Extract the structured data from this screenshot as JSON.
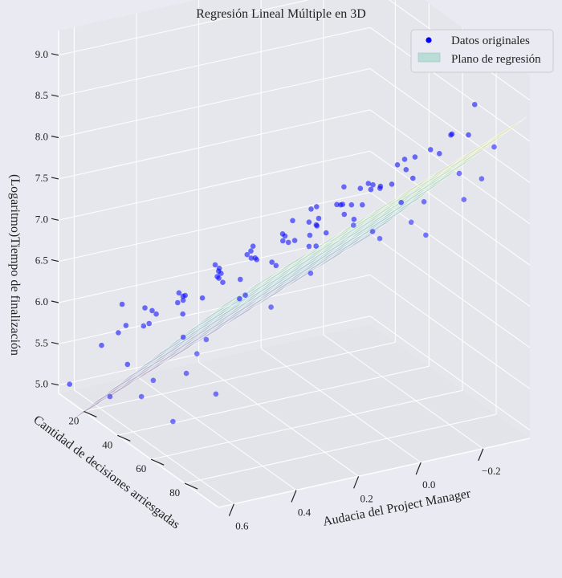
{
  "chart_data": {
    "type": "scatter",
    "title": "Regresión Lineal Múltiple en 3D",
    "xlabel": "Cantidad de decisiones arriesgadas",
    "ylabel": "Audacia del Project Manager",
    "zlabel": "(Logaritmo)Tiempo de finalización",
    "xlim": [
      5,
      100
    ],
    "ylim": [
      -0.35,
      0.65
    ],
    "zlim": [
      4.9,
      9.3
    ],
    "x_ticks": [
      "20",
      "40",
      "60",
      "80"
    ],
    "y_ticks": [
      "0.6",
      "0.4",
      "0.2",
      "0.0",
      "−0.2"
    ],
    "z_ticks": [
      "5.0",
      "5.5",
      "6.0",
      "6.5",
      "7.0",
      "7.5",
      "8.0",
      "8.5",
      "9.0"
    ],
    "legend": {
      "position": "top-right",
      "entries": [
        {
          "label": "Datos originales",
          "color": "#0000ff"
        },
        {
          "label": "Plano de regresión",
          "color": "#b9dcd6"
        }
      ]
    },
    "series": [
      {
        "name": "Datos originales",
        "color": "#0000ff",
        "points": [
          [
            6,
            0.62,
            5.0
          ],
          [
            8,
            0.45,
            5.6
          ],
          [
            10,
            0.4,
            5.8
          ],
          [
            12,
            0.55,
            5.5
          ],
          [
            14,
            0.3,
            5.7
          ],
          [
            15,
            0.5,
            6.0
          ],
          [
            16,
            0.2,
            6.1
          ],
          [
            18,
            0.42,
            5.9
          ],
          [
            20,
            0.1,
            6.3
          ],
          [
            21,
            0.35,
            6.1
          ],
          [
            22,
            0.55,
            5.8
          ],
          [
            24,
            0.25,
            6.4
          ],
          [
            25,
            0.0,
            6.5
          ],
          [
            26,
            0.45,
            6.0
          ],
          [
            28,
            0.15,
            6.6
          ],
          [
            29,
            0.38,
            6.2
          ],
          [
            30,
            -0.05,
            6.8
          ],
          [
            31,
            0.5,
            6.0
          ],
          [
            32,
            0.28,
            6.5
          ],
          [
            33,
            0.05,
            6.9
          ],
          [
            34,
            0.4,
            6.3
          ],
          [
            35,
            -0.1,
            7.0
          ],
          [
            36,
            0.2,
            6.7
          ],
          [
            37,
            0.55,
            6.1
          ],
          [
            38,
            0.0,
            7.1
          ],
          [
            39,
            0.32,
            6.6
          ],
          [
            40,
            0.12,
            6.9
          ],
          [
            41,
            -0.15,
            7.3
          ],
          [
            42,
            0.45,
            6.4
          ],
          [
            43,
            0.25,
            6.8
          ],
          [
            44,
            0.05,
            7.2
          ],
          [
            45,
            -0.05,
            7.4
          ],
          [
            46,
            0.35,
            6.7
          ],
          [
            47,
            0.15,
            7.0
          ],
          [
            48,
            0.5,
            6.5
          ],
          [
            49,
            -0.2,
            7.6
          ],
          [
            50,
            0.0,
            7.3
          ],
          [
            51,
            0.28,
            6.9
          ],
          [
            52,
            0.1,
            7.2
          ],
          [
            53,
            -0.1,
            7.5
          ],
          [
            54,
            0.4,
            6.8
          ],
          [
            55,
            0.2,
            7.1
          ],
          [
            56,
            0.02,
            7.4
          ],
          [
            57,
            -0.18,
            7.8
          ],
          [
            58,
            0.3,
            7.0
          ],
          [
            59,
            0.48,
            6.7
          ],
          [
            60,
            0.12,
            7.3
          ],
          [
            61,
            -0.05,
            7.6
          ],
          [
            62,
            0.22,
            7.2
          ],
          [
            63,
            0.38,
            6.9
          ],
          [
            64,
            0.0,
            7.7
          ],
          [
            65,
            -0.22,
            8.0
          ],
          [
            66,
            0.15,
            7.4
          ],
          [
            67,
            0.3,
            7.1
          ],
          [
            68,
            0.05,
            7.6
          ],
          [
            69,
            -0.12,
            7.9
          ],
          [
            70,
            0.42,
            6.8
          ],
          [
            71,
            0.2,
            7.4
          ],
          [
            72,
            -0.02,
            7.8
          ],
          [
            73,
            0.1,
            7.6
          ],
          [
            74,
            -0.2,
            8.1
          ],
          [
            75,
            0.33,
            7.2
          ],
          [
            76,
            0.0,
            7.9
          ],
          [
            77,
            0.18,
            7.5
          ],
          [
            78,
            -0.1,
            8.2
          ],
          [
            79,
            0.45,
            7.0
          ],
          [
            80,
            0.08,
            7.8
          ],
          [
            82,
            -0.25,
            8.4
          ],
          [
            84,
            0.25,
            7.5
          ],
          [
            86,
            -0.05,
            8.1
          ],
          [
            88,
            0.15,
            7.8
          ],
          [
            90,
            -0.15,
            8.6
          ],
          [
            92,
            0.05,
            8.2
          ],
          [
            95,
            -0.2,
            9.0
          ],
          [
            97,
            0.2,
            7.9
          ],
          [
            100,
            -0.1,
            8.8
          ],
          [
            20,
            -0.3,
            6.2
          ],
          [
            35,
            -0.32,
            6.6
          ],
          [
            50,
            -0.28,
            7.1
          ],
          [
            60,
            0.58,
            5.3
          ],
          [
            80,
            0.55,
            5.9
          ],
          [
            45,
            0.6,
            5.4
          ],
          [
            40,
            -0.34,
            6.5
          ],
          [
            30,
            0.62,
            5.2
          ],
          [
            70,
            -0.3,
            7.4
          ],
          [
            55,
            0.52,
            6.2
          ],
          [
            65,
            0.5,
            6.3
          ],
          [
            85,
            0.4,
            6.9
          ],
          [
            90,
            0.3,
            7.3
          ],
          [
            25,
            -0.25,
            6.4
          ],
          [
            15,
            -0.1,
            6.2
          ],
          [
            10,
            0.15,
            5.9
          ],
          [
            75,
            -0.33,
            7.7
          ],
          [
            42,
            -0.25,
            7.0
          ],
          [
            58,
            -0.35,
            7.5
          ],
          [
            68,
            0.58,
            6.0
          ],
          [
            33,
            0.58,
            5.6
          ],
          [
            52,
            0.6,
            5.7
          ],
          [
            88,
            -0.3,
            8.3
          ],
          [
            78,
            0.6,
            6.4
          ]
        ]
      }
    ],
    "plane": {
      "label": "Plano de regresión",
      "colormap": "viridis",
      "alpha": 0.25,
      "intercept": 5.3,
      "coef_x": 0.03,
      "coef_y": -1.5
    }
  }
}
